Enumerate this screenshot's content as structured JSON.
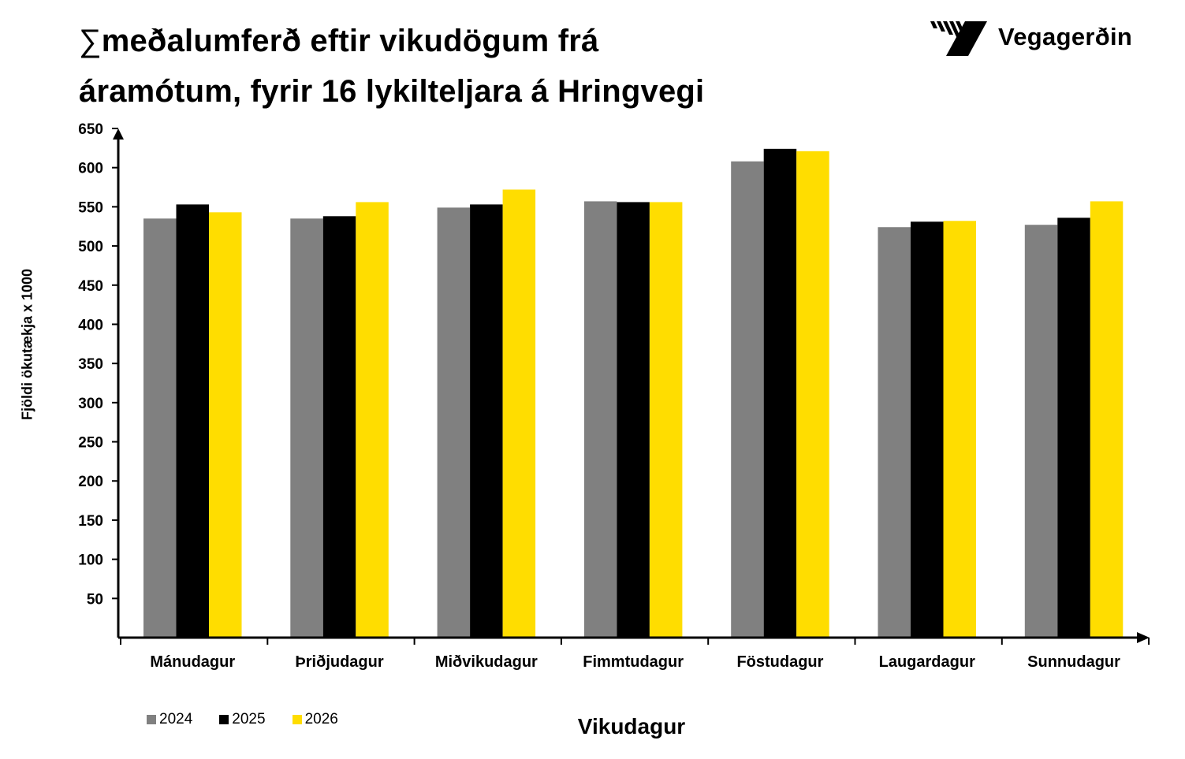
{
  "title": {
    "symbol": "∑",
    "line1": "meðalumferð eftir vikudögum frá",
    "line2": "áramótum, fyrir 16 lykilteljara á Hringvegi"
  },
  "logo": {
    "text": "Vegagerðin",
    "icon": "vegagerdin-logo-icon"
  },
  "colors": {
    "2024": "#808080",
    "2025": "#000000",
    "2026": "#FFDD00"
  },
  "chart_data": {
    "type": "bar",
    "title": "∑meðalumferð eftir vikudögum frá áramótum, fyrir 16 lykilteljara á Hringvegi",
    "xlabel": "Vikudagur",
    "ylabel": "Fjöldi ökutækja x 1000",
    "ylim": [
      0,
      650
    ],
    "yticks": [
      50,
      100,
      150,
      200,
      250,
      300,
      350,
      400,
      450,
      500,
      550,
      600,
      650
    ],
    "grid": false,
    "legend_position": "bottom-left",
    "categories": [
      "Mánudagur",
      "Þriðjudagur",
      "Miðvikudagur",
      "Fimmtudagur",
      "Föstudagur",
      "Laugardagur",
      "Sunnudagur"
    ],
    "series": [
      {
        "name": "2024",
        "color": "#808080",
        "values": [
          535,
          535,
          549,
          557,
          608,
          524,
          527
        ]
      },
      {
        "name": "2025",
        "color": "#000000",
        "values": [
          553,
          538,
          553,
          556,
          624,
          531,
          536
        ]
      },
      {
        "name": "2026",
        "color": "#FFDD00",
        "values": [
          543,
          556,
          572,
          556,
          621,
          532,
          557
        ]
      }
    ]
  }
}
